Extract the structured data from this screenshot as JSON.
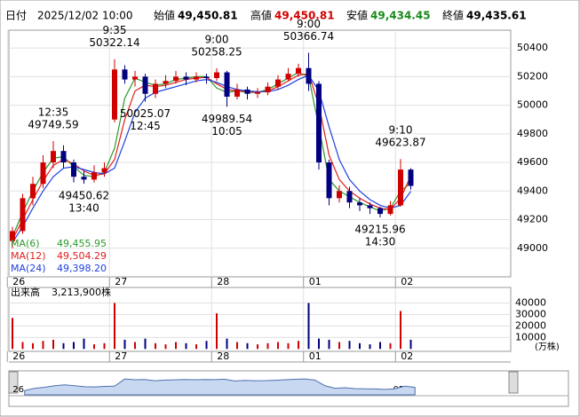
{
  "header": {
    "date_label": "日付",
    "date": "2025/12/02 10:00",
    "open_label": "始値",
    "open": "49,450.81",
    "high_label": "高値",
    "high": "49,450.81",
    "low_label": "安値",
    "low": "49,434.45",
    "close_label": "終値",
    "close": "49,435.61"
  },
  "chart_data": {
    "type": "candlestick",
    "days": [
      "26",
      "27",
      "28",
      "01",
      "02"
    ],
    "day_start_index": [
      0,
      10,
      20,
      29,
      38
    ],
    "open": [
      49050,
      49120,
      49350,
      49450,
      49600,
      49680,
      49600,
      49500,
      49480,
      49530,
      49900,
      50250,
      50180,
      50200,
      50080,
      50150,
      50170,
      50200,
      50180,
      50200,
      50190,
      50230,
      50060,
      50110,
      50080,
      50090,
      50130,
      50180,
      50220,
      50260,
      50150,
      49600,
      49350,
      49400,
      49320,
      49300,
      49280,
      49240,
      49300,
      49550
    ],
    "high": [
      49150,
      49380,
      49500,
      49650,
      49749.59,
      49720,
      49620,
      49540,
      49580,
      49600,
      50322.14,
      50280,
      50240,
      50220,
      50180,
      50210,
      50240,
      50230,
      50230,
      50220,
      50258.25,
      50240,
      50150,
      50130,
      50120,
      50160,
      50210,
      50260,
      50290,
      50366.74,
      50170,
      49620,
      49440,
      49430,
      49350,
      49320,
      49290,
      49330,
      49623.87,
      49560
    ],
    "low": [
      49000,
      49100,
      49300,
      49420,
      49560,
      49560,
      49460,
      49450.62,
      49460,
      49500,
      49880,
      50150,
      50130,
      50025.07,
      50050,
      50120,
      50150,
      50140,
      50160,
      50150,
      50170,
      49989.54,
      50040,
      50040,
      50050,
      50070,
      50110,
      50170,
      50200,
      50100,
      49550,
      49300,
      49320,
      49280,
      49260,
      49240,
      49215.96,
      49230,
      49290,
      49410
    ],
    "close": [
      49120,
      49350,
      49450,
      49600,
      49680,
      49600,
      49500,
      49480,
      49530,
      49560,
      50250,
      50180,
      50200,
      50080,
      50150,
      50170,
      50200,
      50180,
      50200,
      50190,
      50230,
      50060,
      50110,
      50080,
      50090,
      50130,
      50180,
      50220,
      50260,
      50150,
      49600,
      49350,
      49400,
      49320,
      49300,
      49280,
      49240,
      49300,
      49550,
      49436
    ],
    "up_color": "#d00000",
    "down_color": "#000080",
    "ylim": [
      48800,
      50525
    ],
    "yticks": [
      50400,
      50200,
      50000,
      49800,
      49600,
      49400,
      49200,
      49000
    ],
    "grid": true,
    "annotations": [
      {
        "time": "12:35",
        "value": 49749.59,
        "kind": "high"
      },
      {
        "time": "13:40",
        "value": 49450.62,
        "kind": "low"
      },
      {
        "time": "9:35",
        "value": 50322.14,
        "kind": "high"
      },
      {
        "time": "12:45",
        "value": 50025.07,
        "kind": "low"
      },
      {
        "time": "9:00",
        "value": 50258.25,
        "kind": "high"
      },
      {
        "time": "10:05",
        "value": 49989.54,
        "kind": "low"
      },
      {
        "time": "9:00",
        "value": 50366.74,
        "kind": "high"
      },
      {
        "time": "14:30",
        "value": 49215.96,
        "kind": "low"
      },
      {
        "time": "9:10",
        "value": 49623.87,
        "kind": "high"
      }
    ],
    "series": [
      {
        "name": "MA(6)",
        "color": "#2a9a2a",
        "legend_value": "49,455.95",
        "values": [
          49080,
          49250,
          49400,
          49530,
          49630,
          49640,
          49570,
          49510,
          49500,
          49530,
          49700,
          50050,
          50190,
          50160,
          50140,
          50150,
          50180,
          50190,
          50200,
          50200,
          50120,
          50090,
          50100,
          50090,
          50090,
          50110,
          50150,
          50190,
          50230,
          50200,
          49850,
          49480,
          49400,
          49360,
          49320,
          49290,
          49260,
          49280,
          49400,
          49455.95
        ]
      },
      {
        "name": "MA(12)",
        "color": "#e02020",
        "legend_value": "49,504.29",
        "values": [
          49060,
          49200,
          49340,
          49470,
          49580,
          49620,
          49590,
          49540,
          49510,
          49520,
          49620,
          49900,
          50100,
          50140,
          50130,
          50140,
          50160,
          50180,
          50190,
          50195,
          50150,
          50110,
          50100,
          50095,
          50090,
          50100,
          50130,
          50170,
          50210,
          50220,
          50000,
          49650,
          49480,
          49400,
          49350,
          49310,
          49280,
          49270,
          49350,
          49504.29
        ]
      },
      {
        "name": "MA(24)",
        "color": "#2040e0",
        "legend_value": "49,398.20",
        "values": [
          49040,
          49150,
          49280,
          49400,
          49500,
          49560,
          49570,
          49550,
          49530,
          49520,
          49560,
          49750,
          49950,
          50050,
          50090,
          50110,
          50130,
          50150,
          50170,
          50180,
          50160,
          50130,
          50110,
          50100,
          50095,
          50095,
          50110,
          50140,
          50180,
          50210,
          50100,
          49850,
          49620,
          49480,
          49400,
          49340,
          49300,
          49280,
          49300,
          49398.2
        ]
      }
    ],
    "volume": {
      "title": "出来高",
      "total": "3,213,900株",
      "unit": "(万株)",
      "values": [
        27000,
        6000,
        5000,
        7000,
        8000,
        5000,
        6000,
        9000,
        4000,
        5000,
        40000,
        8000,
        6000,
        9000,
        5000,
        4000,
        6000,
        5000,
        4000,
        7000,
        31000,
        9000,
        6000,
        5000,
        4000,
        5000,
        6000,
        5000,
        7000,
        40000,
        9000,
        8000,
        6000,
        7000,
        5000,
        4000,
        6000,
        5000,
        33000,
        8000
      ],
      "ylim": [
        0,
        53500
      ],
      "yticks": [
        40000,
        30000,
        20000,
        10000
      ]
    }
  }
}
